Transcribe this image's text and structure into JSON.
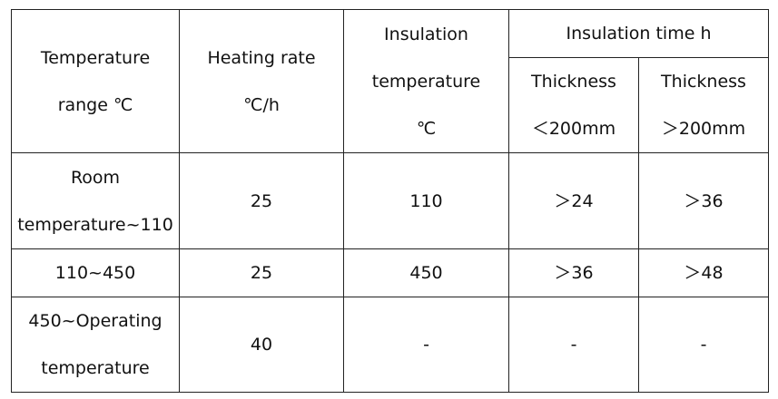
{
  "table": {
    "header": [
      [
        "Temperature",
        "range ℃"
      ],
      [
        "Heating rate",
        "℃/h"
      ],
      [
        "Insulation",
        "temperature",
        "℃"
      ],
      [
        "Insulation time h"
      ]
    ],
    "subheader": [
      [
        "Thickness",
        "＜200mm"
      ],
      [
        "Thickness",
        "＞200mm"
      ]
    ],
    "rows": [
      [
        [
          "Room",
          "temperature~110"
        ],
        [
          "25"
        ],
        [
          "110"
        ],
        [
          "＞24"
        ],
        [
          "＞36"
        ]
      ],
      [
        [
          "110~450"
        ],
        [
          "25"
        ],
        [
          "450"
        ],
        [
          "＞36"
        ],
        [
          "＞48"
        ]
      ],
      [
        [
          "450~Operating",
          "temperature"
        ],
        [
          "40"
        ],
        [
          "-"
        ],
        [
          "-"
        ],
        [
          "-"
        ]
      ]
    ]
  }
}
